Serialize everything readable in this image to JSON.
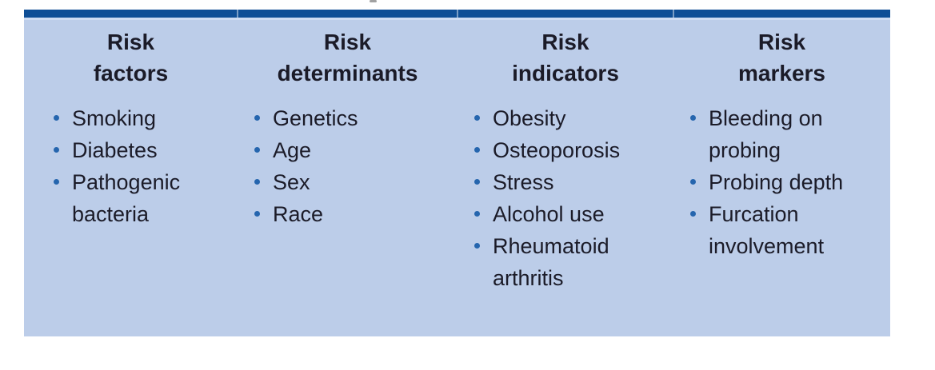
{
  "theme": {
    "page_bg": "#ffffff",
    "accent_bar": "#0e4e96",
    "panel": "#bccde9",
    "panel_highlight": "#cfdcf2",
    "divider": "rgba(255,255,255,0.45)",
    "bullet": "#2565ae",
    "text": "#1b1b28"
  },
  "table": {
    "columns": [
      {
        "id": "risk-factors",
        "title": "Risk factors",
        "title_lines": [
          "Risk",
          "factors"
        ],
        "items": [
          "Smoking",
          "Diabetes",
          "Pathogenic bacteria"
        ]
      },
      {
        "id": "risk-determinants",
        "title": "Risk determinants",
        "title_lines": [
          "Risk",
          "determinants"
        ],
        "items": [
          "Genetics",
          "Age",
          "Sex",
          "Race"
        ]
      },
      {
        "id": "risk-indicators",
        "title": "Risk indicators",
        "title_lines": [
          "Risk",
          "indicators"
        ],
        "items": [
          "Obesity",
          "Osteoporosis",
          "Stress",
          "Alcohol use",
          "Rheumatoid arthritis"
        ]
      },
      {
        "id": "risk-markers",
        "title": "Risk markers",
        "title_lines": [
          "Risk",
          "markers"
        ],
        "items": [
          "Bleeding on probing",
          "Probing depth",
          "Furcation involvement"
        ]
      }
    ]
  }
}
